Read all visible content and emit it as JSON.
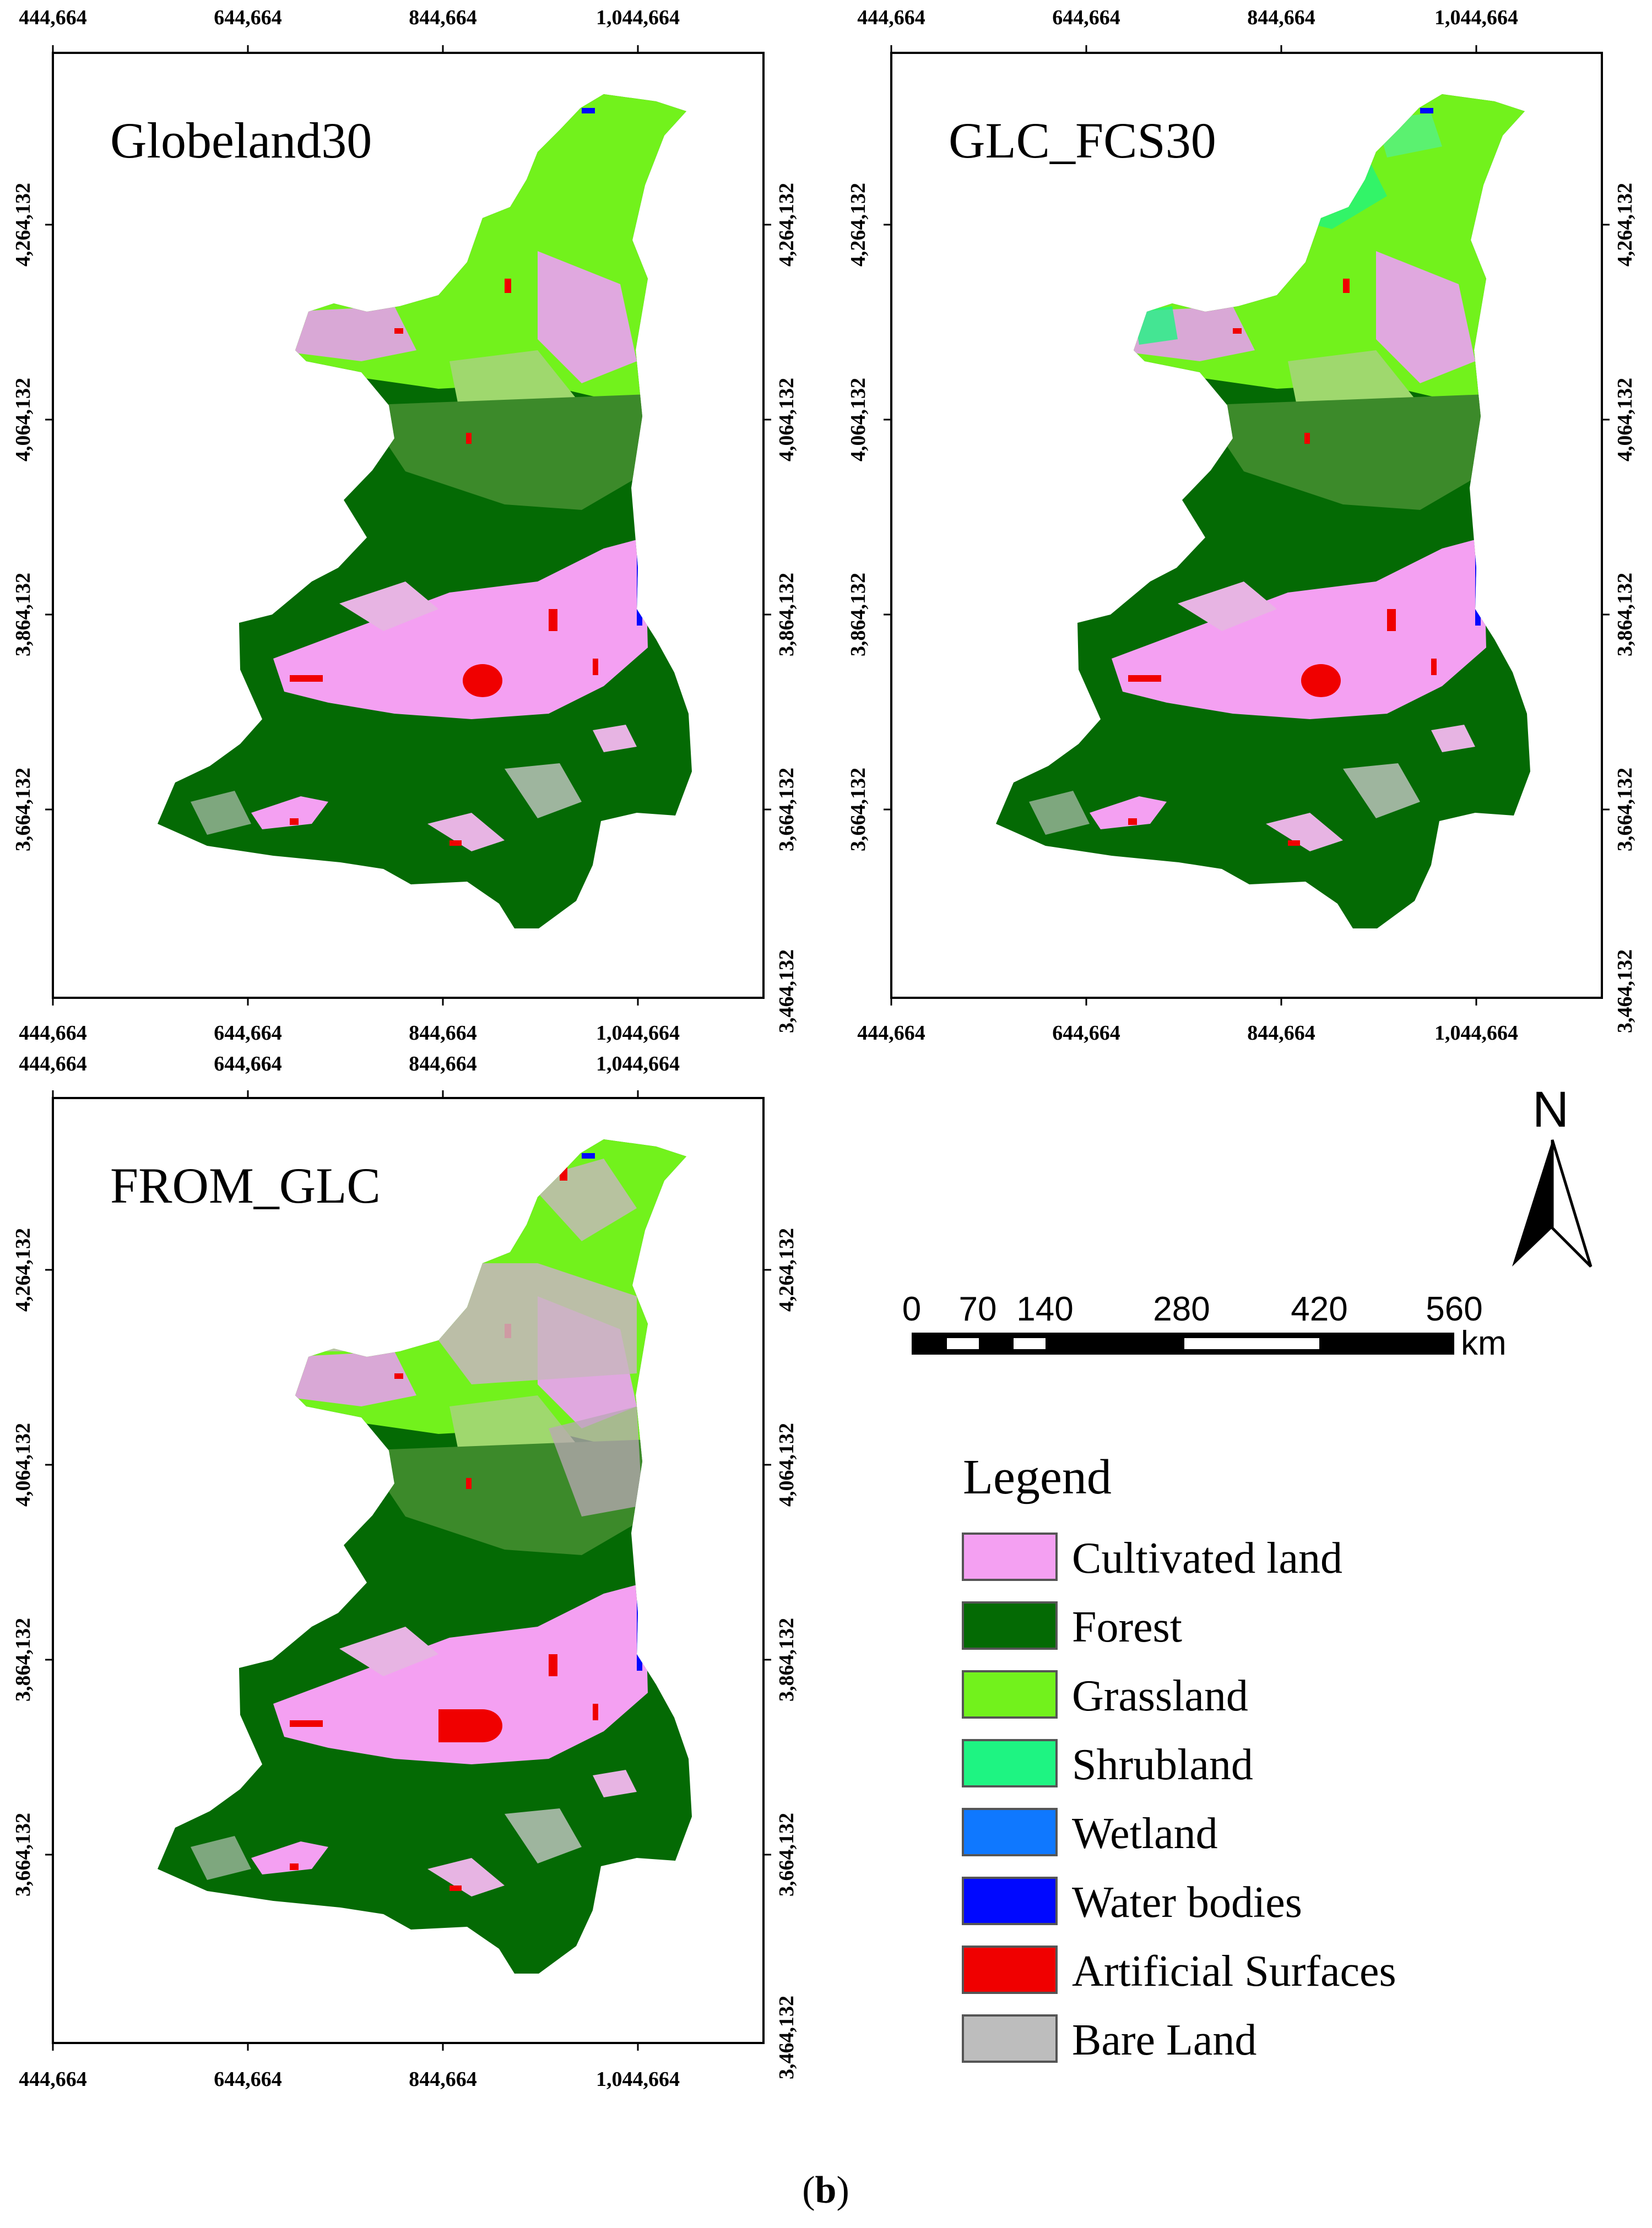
{
  "figure": {
    "caption_prefix": "(",
    "caption_letter": "b",
    "caption_suffix": ")"
  },
  "axes": {
    "x_ticks": [
      "444,664",
      "644,664",
      "844,664",
      "1,044,664"
    ],
    "y_ticks": [
      "4,264,132",
      "4,064,132",
      "3,864,132",
      "3,664,132"
    ],
    "y_bottom_label": "3,464,132"
  },
  "panels": [
    {
      "id": "globeland30",
      "title": "Globeland30"
    },
    {
      "id": "glc-fcs30",
      "title": "GLC_FCS30"
    },
    {
      "id": "from-glc",
      "title": "FROM_GLC"
    }
  ],
  "north_arrow": {
    "label": "N"
  },
  "scale_bar": {
    "ticks": [
      "0",
      "70",
      "140",
      "280",
      "420",
      "560"
    ],
    "unit": "km"
  },
  "legend": {
    "title": "Legend",
    "items": [
      {
        "label": "Cultivated land",
        "color": "#f4a0f2"
      },
      {
        "label": "Forest",
        "color": "#046a04"
      },
      {
        "label": "Grassland",
        "color": "#72f21c"
      },
      {
        "label": "Shrubland",
        "color": "#1ef482"
      },
      {
        "label": "Wetland",
        "color": "#0f78ff"
      },
      {
        "label": "Water bodies",
        "color": "#0008ff"
      },
      {
        "label": "Artificial Surfaces",
        "color": "#f00000"
      },
      {
        "label": "Bare Land",
        "color": "#bdbdbd"
      }
    ]
  },
  "colors": {
    "cultivated": "#f4a0f2",
    "forest": "#046a04",
    "grassland": "#72f21c",
    "shrubland": "#1ef482",
    "water": "#0008ff",
    "artificial": "#f00000",
    "bare": "#bdbdbd"
  }
}
